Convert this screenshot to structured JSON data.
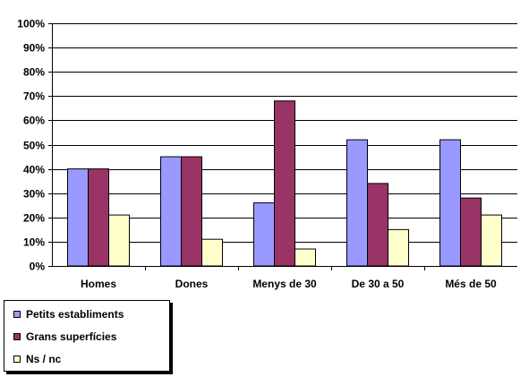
{
  "chart_data": {
    "type": "bar",
    "title": "",
    "xlabel": "",
    "ylabel": "",
    "categories": [
      "Homes",
      "Dones",
      "Menys de 30",
      "De 30 a 50",
      "Més de 50"
    ],
    "ylim": [
      0,
      100
    ],
    "yticks": [
      "0%",
      "10%",
      "20%",
      "30%",
      "40%",
      "50%",
      "60%",
      "70%",
      "80%",
      "90%",
      "100%"
    ],
    "grid": true,
    "legend_position": "bottom-left",
    "series": [
      {
        "name": "Petits establiments",
        "color": "#9999ff",
        "values": [
          40,
          45,
          26,
          52,
          52
        ]
      },
      {
        "name": "Grans superfícies",
        "color": "#993366",
        "values": [
          40,
          45,
          68,
          34,
          28
        ]
      },
      {
        "name": "Ns / nc",
        "color": "#ffffcc",
        "values": [
          21,
          11,
          7,
          15,
          21
        ]
      }
    ]
  }
}
